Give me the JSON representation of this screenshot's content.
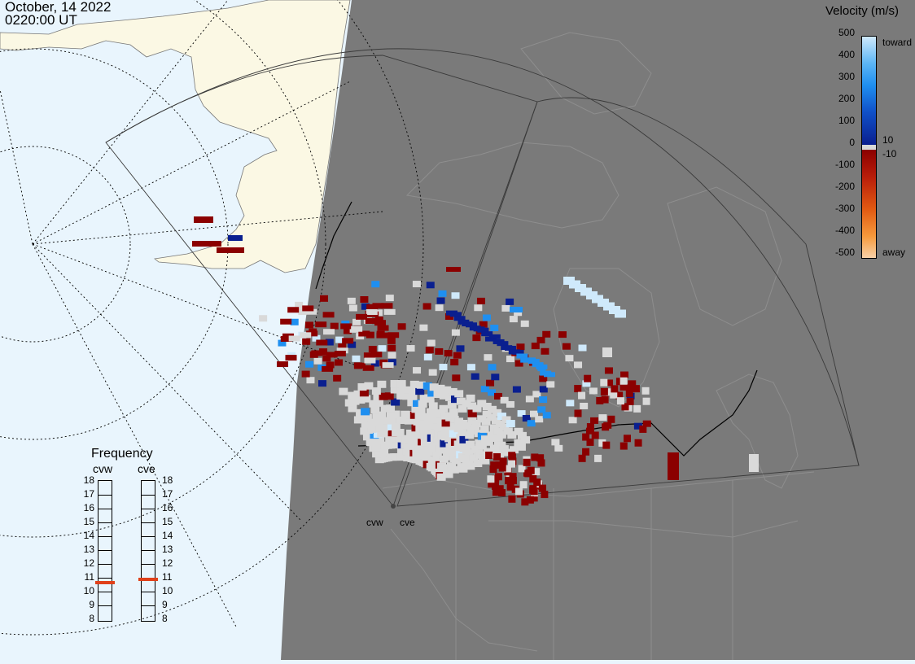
{
  "header": {
    "date": "October, 14 2022",
    "time": "0220:00 UT"
  },
  "legend": {
    "title": "Velocity (m/s)",
    "ticks": [
      "500",
      "400",
      "300",
      "200",
      "100",
      "0",
      "-100",
      "-200",
      "-300",
      "-400",
      "-500"
    ],
    "toward_label": "toward",
    "away_label": "away",
    "inner_pos": "10",
    "inner_neg": "-10",
    "colors": {
      "toward_light": "#cfe9fb",
      "toward_mid": "#1f8ff0",
      "toward_dark": "#0a1f8f",
      "zero": "#d9d9d9",
      "away_dark": "#8b0000",
      "away_mid": "#e25a12",
      "away_light": "#f9d2a8"
    }
  },
  "frequency": {
    "title": "Frequency",
    "radars": [
      "cvw",
      "cve"
    ],
    "scale": [
      "18",
      "17",
      "16",
      "15",
      "14",
      "13",
      "12",
      "11",
      "10",
      "9",
      "8"
    ],
    "current_mhz": [
      10.6,
      10.8
    ]
  },
  "sites": {
    "west": "cvw",
    "east": "cve"
  },
  "colors": {
    "ocean": "#e9f5fd",
    "land_day": "#fbf8e4",
    "night": "#7a7a7a",
    "low_velocity_gray": "#d3d3d3"
  }
}
